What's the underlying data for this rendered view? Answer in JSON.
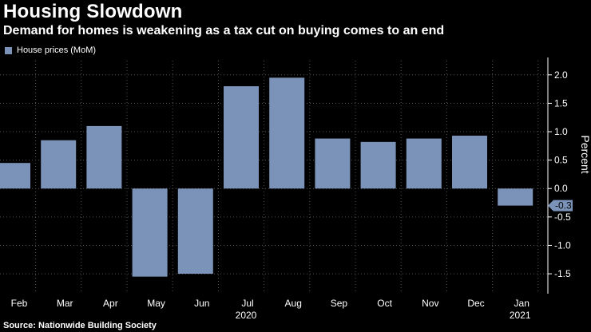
{
  "header": {
    "title": "Housing Slowdown",
    "subtitle": "Demand for homes is weakening as a tax cut on buying comes to an end"
  },
  "legend": {
    "label": "House prices (MoM)"
  },
  "footer": {
    "source": "Source: Nationwide Building Society"
  },
  "colors": {
    "bar": "#7b93b8",
    "background": "#000000",
    "grid": "#555555",
    "text": "#ffffff",
    "label_box": "#7b93b8"
  },
  "chart_data": {
    "type": "bar",
    "categories": [
      "Feb",
      "Mar",
      "Apr",
      "May",
      "Jun",
      "Jul",
      "Aug",
      "Sep",
      "Oct",
      "Nov",
      "Dec",
      "Jan"
    ],
    "year_labels": [
      {
        "text": "2020",
        "category": "Jul"
      },
      {
        "text": "2021",
        "category": "Jan"
      }
    ],
    "series": [
      {
        "name": "House prices (MoM)",
        "values": [
          0.45,
          0.85,
          1.1,
          -1.55,
          -1.5,
          1.8,
          1.95,
          0.88,
          0.82,
          0.88,
          0.93,
          -0.3
        ]
      }
    ],
    "last_value_label": "-0.3",
    "ylabel": "Percent",
    "ylim": [
      -1.85,
      2.25
    ],
    "yticks": [
      -1.5,
      -1.0,
      -0.5,
      0.0,
      0.5,
      1.0,
      1.5,
      2.0
    ],
    "ytick_labels": [
      "-1.5",
      "-1.0",
      "-0.5",
      "0.0",
      "0.5",
      "1.0",
      "1.5",
      "2.0"
    ],
    "grid": true,
    "legend_position": "top-left"
  }
}
